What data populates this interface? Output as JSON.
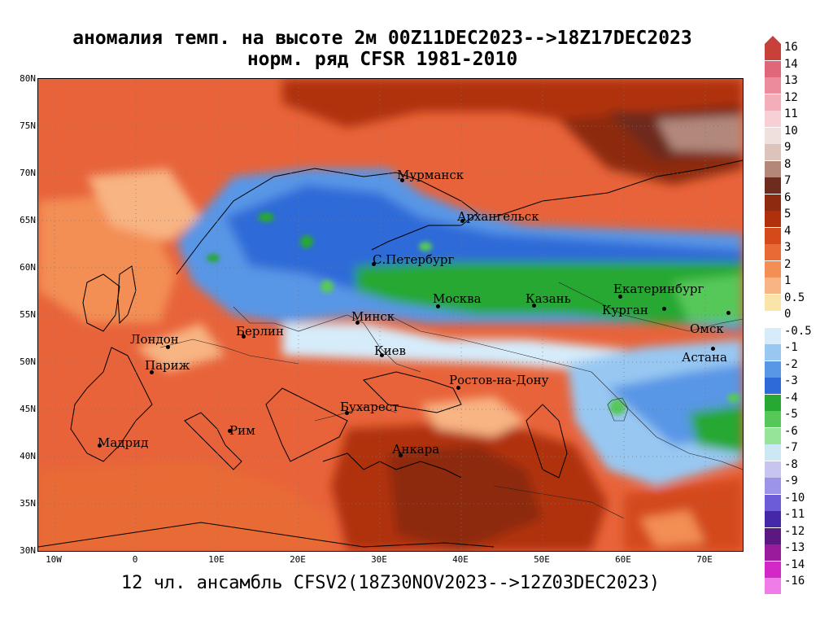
{
  "header": {
    "title_line1": "аномалия темп. на высоте 2м 00Z11DEC2023-->18Z17DEC2023",
    "title_line2": "норм. ряд CFSR 1981-2010"
  },
  "footer": {
    "text": "12 чл. ансамбль CFSV2(18Z30NOV2023-->12Z03DEC2023)"
  },
  "axes": {
    "lat_labels": [
      "80N",
      "75N",
      "70N",
      "65N",
      "60N",
      "55N",
      "50N",
      "45N",
      "40N",
      "35N",
      "30N"
    ],
    "lon_labels": [
      "10W",
      "0",
      "10E",
      "20E",
      "30E",
      "40E",
      "50E",
      "60E",
      "70E"
    ]
  },
  "cities": [
    {
      "name": "Мурманск"
    },
    {
      "name": "Архангельск"
    },
    {
      "name": "С.Петербург"
    },
    {
      "name": "Москва"
    },
    {
      "name": "Казань"
    },
    {
      "name": "Екатеринбург"
    },
    {
      "name": "Курган"
    },
    {
      "name": "Омск"
    },
    {
      "name": "Астана"
    },
    {
      "name": "Минск"
    },
    {
      "name": "Берлин"
    },
    {
      "name": "Лондон"
    },
    {
      "name": "Париж"
    },
    {
      "name": "Киев"
    },
    {
      "name": "Ростов-на-Дону"
    },
    {
      "name": "Бухарест"
    },
    {
      "name": "Рим"
    },
    {
      "name": "Мадрид"
    },
    {
      "name": "Анкара"
    }
  ],
  "legend": {
    "labels": [
      "16",
      "14",
      "13",
      "12",
      "11",
      "10",
      "9",
      "8",
      "7",
      "6",
      "5",
      "4",
      "3",
      "2",
      "1",
      "0.5",
      "0",
      "-0.5",
      "-1",
      "-2",
      "-3",
      "-4",
      "-5",
      "-6",
      "-7",
      "-8",
      "-9",
      "-10",
      "-11",
      "-12",
      "-13",
      "-14",
      "-16"
    ],
    "colors": [
      "#c8403a",
      "#e0677a",
      "#ec8b9c",
      "#f3aeba",
      "#f7cfd4",
      "#efe0dd",
      "#ddc4bb",
      "#b3887b",
      "#6e2c1e",
      "#8d2a10",
      "#b0300c",
      "#d44a1a",
      "#e86a34",
      "#f38e55",
      "#f8b483",
      "#fbe4a8",
      "#ffffff",
      "#d6ecfb",
      "#98c8f2",
      "#5896e6",
      "#2f6bd8",
      "#27a832",
      "#56c85a",
      "#96e49a",
      "#cce8f4",
      "#c8c4f0",
      "#9c94e6",
      "#6c5cd6",
      "#4428a8",
      "#5a1880",
      "#9a1c9c",
      "#d228c8",
      "#f07ce8"
    ],
    "top_color": "#c8403a",
    "bottom_color": "#f07ce8"
  }
}
